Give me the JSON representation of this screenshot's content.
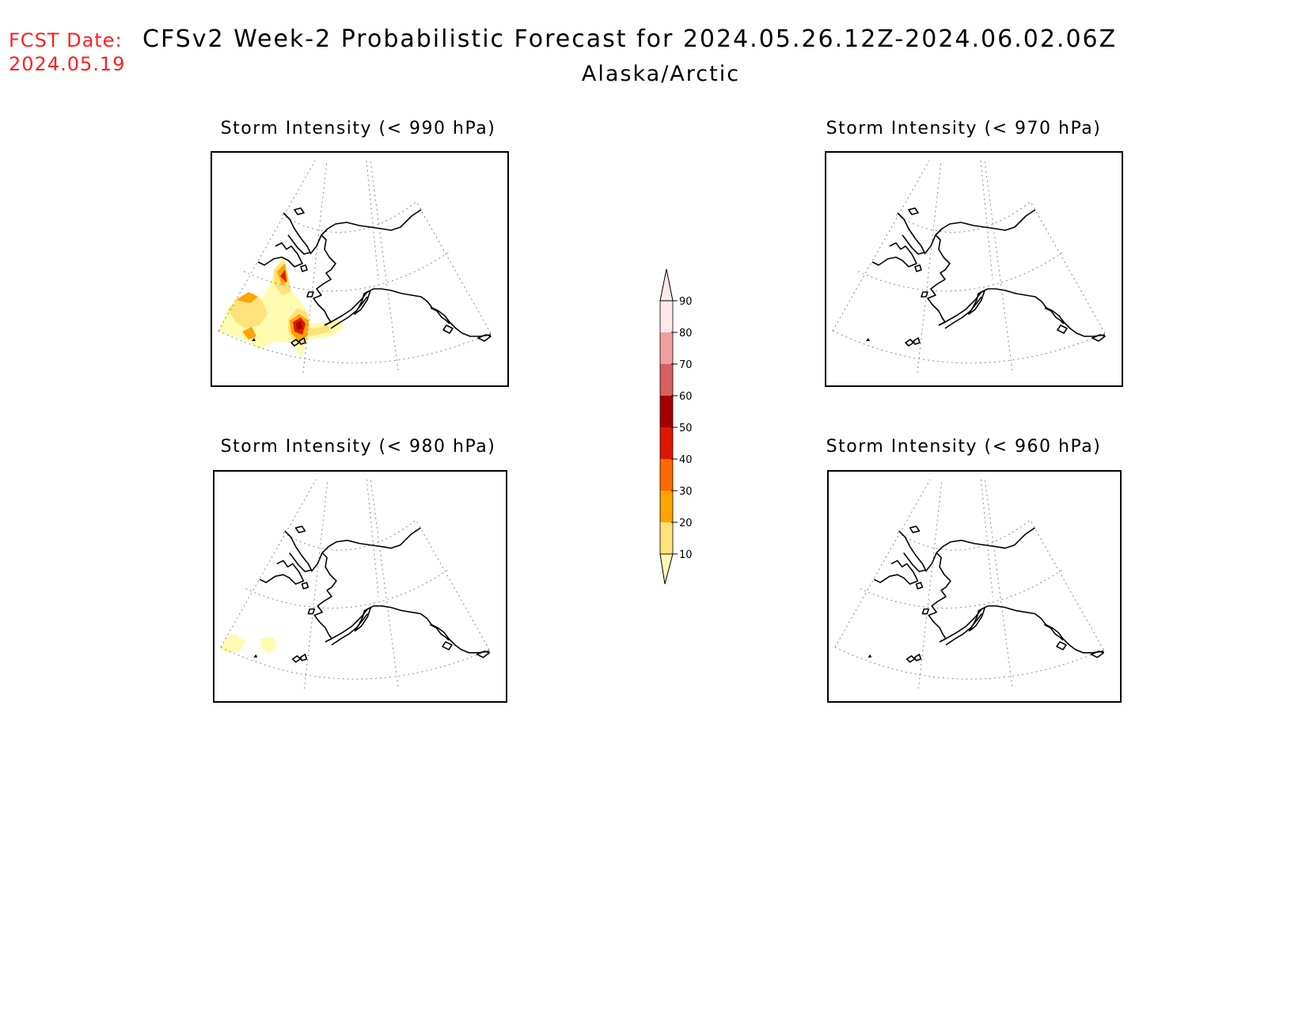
{
  "header": {
    "fcst_label": "FCST Date:",
    "fcst_date": "2024.05.19",
    "title": "CFSv2 Week-2 Probabilistic Forecast for 2024.05.26.12Z-2024.06.02.06Z",
    "region": "Alaska/Arctic"
  },
  "panels": [
    {
      "title": "Storm Intensity (< 990 hPa)"
    },
    {
      "title": "Storm Intensity (< 970 hPa)"
    },
    {
      "title": "Storm Intensity (< 980 hPa)"
    },
    {
      "title": "Storm Intensity (< 960 hPa)"
    }
  ],
  "colorbar": {
    "levels": [
      "10",
      "20",
      "30",
      "40",
      "50",
      "60",
      "70",
      "80",
      "90"
    ],
    "colors": [
      "#fffbb0",
      "#ffe27a",
      "#ffa400",
      "#ff6a00",
      "#e11600",
      "#a50000",
      "#d96060",
      "#f0a0a0",
      "#fde8ea"
    ]
  },
  "colors": {
    "fcst": "#ff2020",
    "coast": "#000000",
    "grid": "#888888"
  }
}
